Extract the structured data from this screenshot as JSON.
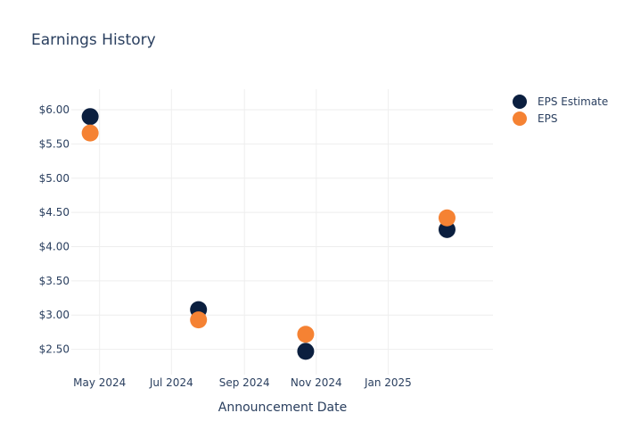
{
  "chart_data": {
    "type": "scatter",
    "title": "Earnings History",
    "xlabel": "Announcement Date",
    "ylabel": "",
    "x_ticks": [
      {
        "date": "2024-05-01",
        "label": "May 2024"
      },
      {
        "date": "2024-07-01",
        "label": "Jul 2024"
      },
      {
        "date": "2024-09-01",
        "label": "Sep 2024"
      },
      {
        "date": "2024-11-01",
        "label": "Nov 2024"
      },
      {
        "date": "2025-01-01",
        "label": "Jan 2025"
      }
    ],
    "xlim": [
      "2024-04-07",
      "2025-03-31"
    ],
    "y_ticks": [
      {
        "value": 2.5,
        "label": "$2.50"
      },
      {
        "value": 3.0,
        "label": "$3.00"
      },
      {
        "value": 3.5,
        "label": "$3.50"
      },
      {
        "value": 4.0,
        "label": "$4.00"
      },
      {
        "value": 4.5,
        "label": "$4.50"
      },
      {
        "value": 5.0,
        "label": "$5.00"
      },
      {
        "value": 5.5,
        "label": "$5.50"
      },
      {
        "value": 6.0,
        "label": "$6.00"
      }
    ],
    "ylim": [
      2.13,
      6.3
    ],
    "grid": true,
    "legend_position": "top-right",
    "x": [
      "2024-04-23",
      "2024-07-24",
      "2024-10-23",
      "2025-02-20"
    ],
    "series": [
      {
        "name": "EPS Estimate",
        "color": "#0b1f3f",
        "values": [
          5.9,
          3.08,
          2.47,
          4.25
        ]
      },
      {
        "name": "EPS",
        "color": "#f58233",
        "values": [
          5.66,
          2.93,
          2.72,
          4.42
        ]
      }
    ]
  }
}
